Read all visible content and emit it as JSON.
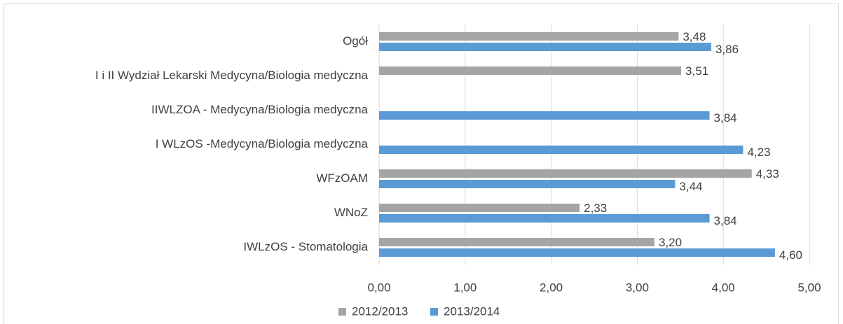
{
  "chart_data": {
    "type": "barh",
    "categories": [
      "Ogół",
      "I i II Wydział Lekarski Medycyna/Biologia medyczna",
      "IIWLZOA - Medycyna/Biologia medyczna",
      "I WLzOS -Medycyna/Biologia medyczna",
      "WFzOAM",
      "WNoZ",
      "IWLzOS - Stomatologia"
    ],
    "series": [
      {
        "name": "2012/2013",
        "color": "#a5a5a5",
        "values": [
          3.48,
          3.51,
          null,
          null,
          4.33,
          2.33,
          3.2
        ],
        "value_labels": [
          "3,48",
          "3,51",
          null,
          null,
          "4,33",
          "2,33",
          "3,20"
        ]
      },
      {
        "name": "2013/2014",
        "color": "#5b9bd5",
        "values": [
          3.86,
          null,
          3.84,
          4.23,
          3.44,
          3.84,
          4.6
        ],
        "value_labels": [
          "3,86",
          null,
          "3,84",
          "4,23",
          "3,44",
          "3,84",
          "4,60"
        ]
      }
    ],
    "xlim": [
      0,
      5
    ],
    "xticks": [
      {
        "value": 0,
        "label": "0,00"
      },
      {
        "value": 1,
        "label": "1,00"
      },
      {
        "value": 2,
        "label": "2,00"
      },
      {
        "value": 3,
        "label": "3,00"
      },
      {
        "value": 4,
        "label": "4,00"
      },
      {
        "value": 5,
        "label": "5,00"
      }
    ],
    "grid": true,
    "legend": "bottom"
  }
}
